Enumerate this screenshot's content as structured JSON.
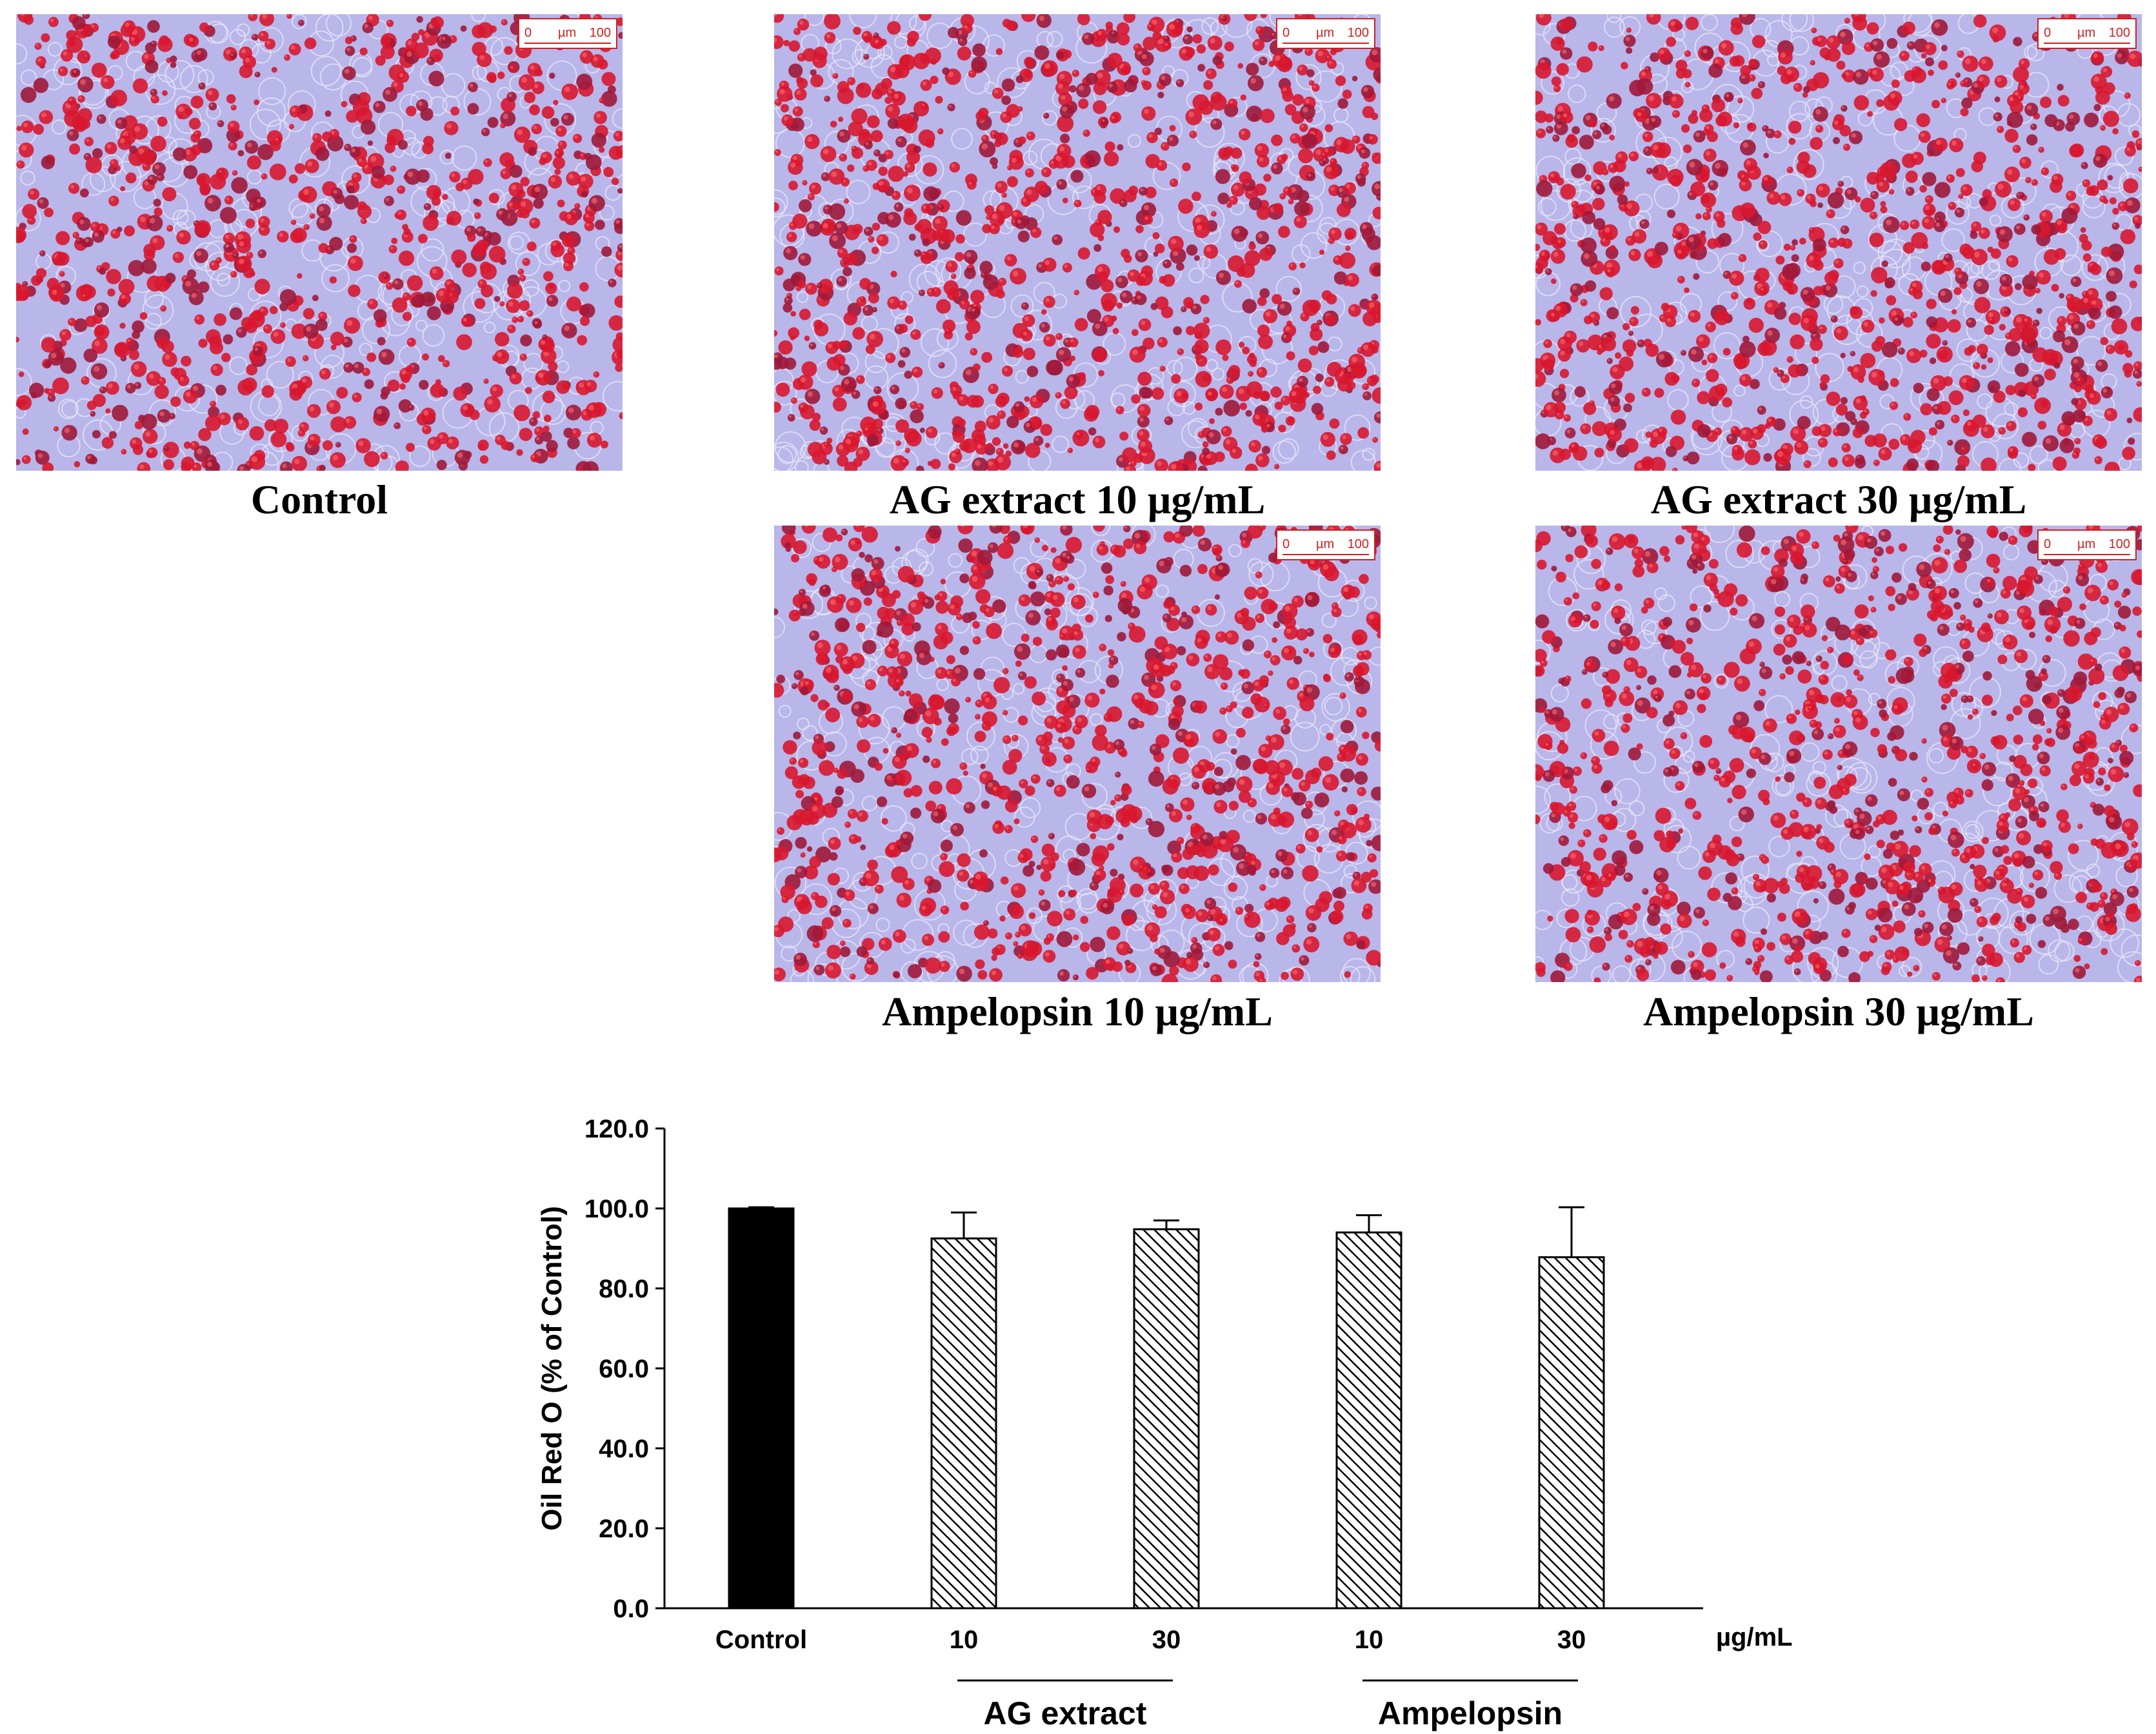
{
  "panels": [
    {
      "caption": "Control",
      "scale": {
        "zero": "0",
        "unit": "µm",
        "max": "100"
      },
      "density": 0.55
    },
    {
      "caption": "AG extract 10 µg/mL",
      "scale": {
        "zero": "0",
        "unit": "µm",
        "max": "100"
      },
      "density": 0.62
    },
    {
      "caption": "AG extract 30 µg/mL",
      "scale": {
        "zero": "0",
        "unit": "µm",
        "max": "100"
      },
      "density": 0.6
    },
    {
      "caption": "Ampelopsin 10 µg/mL",
      "scale": {
        "zero": "0",
        "unit": "µm",
        "max": "100"
      },
      "density": 0.58
    },
    {
      "caption": "Ampelopsin 30 µg/mL",
      "scale": {
        "zero": "0",
        "unit": "µm",
        "max": "100"
      },
      "density": 0.57
    }
  ],
  "colors": {
    "stain": "#d8172f",
    "stain_dark": "#a0183a",
    "background": "#b9b6ea"
  },
  "chart_data": {
    "type": "bar",
    "ylabel": "Oil Red O (% of Control)",
    "ylim": [
      0,
      120
    ],
    "yticks": [
      "0.0",
      "20.0",
      "40.0",
      "60.0",
      "80.0",
      "100.0",
      "120.0"
    ],
    "categories": [
      "Control",
      "10",
      "30",
      "10",
      "30"
    ],
    "values": [
      100.0,
      92.5,
      94.8,
      94.0,
      87.8
    ],
    "errors": [
      0.3,
      6.5,
      2.2,
      4.3,
      12.5
    ],
    "fills": [
      "solid",
      "hatched",
      "hatched",
      "hatched",
      "hatched"
    ],
    "unit_label": "µg/mL",
    "groups": [
      {
        "label": "AG extract",
        "categories": [
          1,
          2
        ]
      },
      {
        "label": "Ampelopsin",
        "categories": [
          3,
          4
        ]
      }
    ]
  }
}
